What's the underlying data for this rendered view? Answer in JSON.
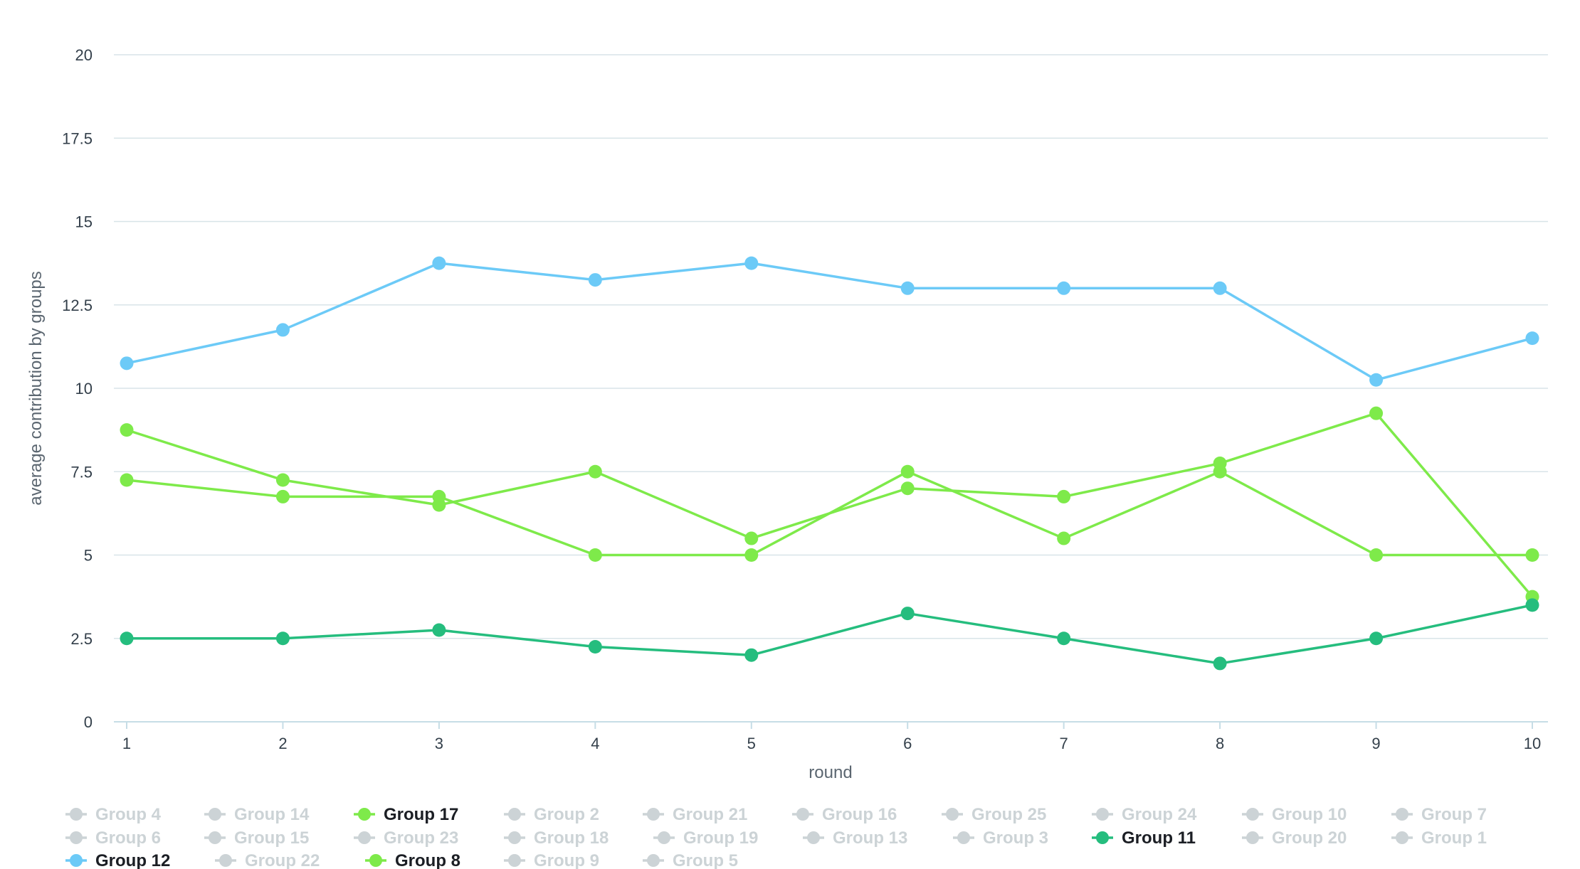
{
  "chart_data": {
    "type": "line",
    "xlabel": "round",
    "ylabel": "average contribution by groups",
    "x": [
      1,
      2,
      3,
      4,
      5,
      6,
      7,
      8,
      9,
      10
    ],
    "ylim": [
      0,
      20
    ],
    "yticks": [
      "0",
      "2.5",
      "5",
      "7.5",
      "10",
      "12.5",
      "15",
      "17.5",
      "20"
    ],
    "xticks": [
      "1",
      "2",
      "3",
      "4",
      "5",
      "6",
      "7",
      "8",
      "9",
      "10"
    ],
    "grid": true,
    "legend_position": "bottom",
    "series": [
      {
        "name": "Group 12",
        "color": "#6ccaf7",
        "values": [
          10.75,
          11.75,
          13.75,
          13.25,
          13.75,
          13.0,
          13.0,
          13.0,
          10.25,
          11.5
        ]
      },
      {
        "name": "Group 17",
        "color": "#7eea4a",
        "values": [
          8.75,
          7.25,
          6.5,
          7.5,
          5.5,
          7.0,
          6.75,
          7.75,
          9.25,
          3.75
        ]
      },
      {
        "name": "Group 8",
        "color": "#7eea4a",
        "values": [
          7.25,
          6.75,
          6.75,
          5.0,
          5.0,
          7.5,
          5.5,
          7.5,
          5.0,
          5.0
        ]
      },
      {
        "name": "Group 11",
        "color": "#25bd7e",
        "values": [
          2.5,
          2.5,
          2.75,
          2.25,
          2.0,
          3.25,
          2.5,
          1.75,
          2.5,
          3.5
        ]
      }
    ],
    "legend": [
      {
        "name": "Group 4",
        "active": false
      },
      {
        "name": "Group 14",
        "active": false
      },
      {
        "name": "Group 17",
        "active": true,
        "color": "#7eea4a"
      },
      {
        "name": "Group 2",
        "active": false
      },
      {
        "name": "Group 21",
        "active": false
      },
      {
        "name": "Group 16",
        "active": false
      },
      {
        "name": "Group 25",
        "active": false
      },
      {
        "name": "Group 24",
        "active": false
      },
      {
        "name": "Group 10",
        "active": false
      },
      {
        "name": "Group 7",
        "active": false
      },
      {
        "name": "Group 6",
        "active": false
      },
      {
        "name": "Group 15",
        "active": false
      },
      {
        "name": "Group 23",
        "active": false
      },
      {
        "name": "Group 18",
        "active": false
      },
      {
        "name": "Group 19",
        "active": false
      },
      {
        "name": "Group 13",
        "active": false
      },
      {
        "name": "Group 3",
        "active": false
      },
      {
        "name": "Group 11",
        "active": true,
        "color": "#25bd7e"
      },
      {
        "name": "Group 20",
        "active": false
      },
      {
        "name": "Group 1",
        "active": false
      },
      {
        "name": "Group 12",
        "active": true,
        "color": "#6ccaf7"
      },
      {
        "name": "Group 22",
        "active": false
      },
      {
        "name": "Group 8",
        "active": true,
        "color": "#7eea4a"
      },
      {
        "name": "Group 9",
        "active": false
      },
      {
        "name": "Group 5",
        "active": false
      }
    ],
    "inactive_color": "#ccd3d6",
    "grid_color": "#d8e4e8",
    "axis_color": "#c6dde6"
  }
}
